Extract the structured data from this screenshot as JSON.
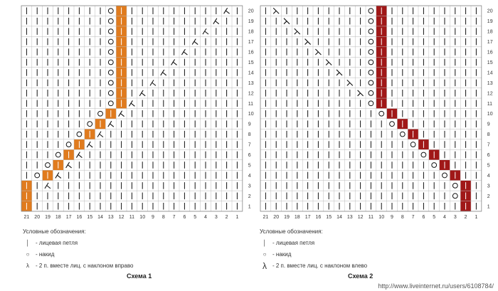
{
  "scheme1": {
    "caption": "Схема 1",
    "accent": "#e07b1e",
    "legend_title": "Условные обозначения:",
    "legend": [
      {
        "icon": "knit-stitch-icon",
        "text": "- лицевая петля"
      },
      {
        "icon": "yarn-over-icon",
        "text": "- накид"
      },
      {
        "icon": "k2tog-right-icon",
        "text": "- 2 п. вместе лиц. с наклоном вправо"
      }
    ]
  },
  "scheme2": {
    "caption": "Схема 2",
    "accent": "#a01818",
    "legend_title": "Условные обозначения:",
    "legend": [
      {
        "icon": "knit-stitch-icon",
        "text": "- лицевая петля"
      },
      {
        "icon": "yarn-over-icon",
        "text": "- накид"
      },
      {
        "icon": "k2tog-left-icon",
        "text": "- 2 п. вместе лиц. с наклоном влево"
      }
    ]
  },
  "columns": [
    "21",
    "20",
    "19",
    "18",
    "17",
    "16",
    "15",
    "14",
    "13",
    "12",
    "11",
    "10",
    "9",
    "8",
    "7",
    "6",
    "5",
    "4",
    "3",
    "2",
    "1"
  ],
  "rows": [
    "20",
    "19",
    "18",
    "17",
    "16",
    "15",
    "14",
    "13",
    "12",
    "11",
    "10",
    "9",
    "8",
    "7",
    "6",
    "5",
    "4",
    "3",
    "2",
    "1"
  ],
  "watermark": "http://www.liveinternet.ru/users/6108784/"
}
